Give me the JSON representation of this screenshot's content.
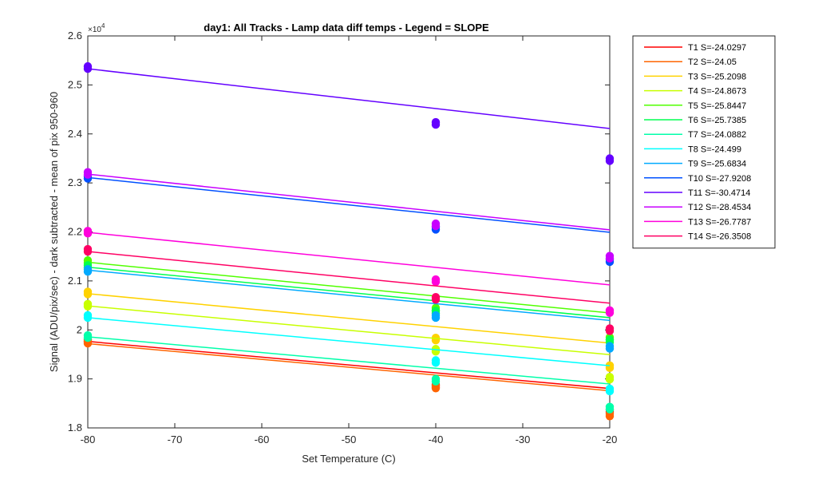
{
  "chart_data": {
    "type": "scatter",
    "title": "day1: All Tracks - Lamp data diff temps - Legend = SLOPE",
    "xlabel": "Set Temperature (C)",
    "ylabel": "Signal (ADU/pix/sec) - dark subtracted - mean of pix 950-960",
    "y_multiplier_label": "×10^4",
    "y_multiplier_base": "×10",
    "y_multiplier_exp": "4",
    "xlim": [
      -80,
      -20
    ],
    "ylim": [
      1.8,
      2.6
    ],
    "x_ticks": [
      -80,
      -70,
      -60,
      -50,
      -40,
      -30,
      -20
    ],
    "x_tick_labels": [
      "-80",
      "-70",
      "-60",
      "-50",
      "-40",
      "-30",
      "-20"
    ],
    "y_ticks": [
      1.8,
      1.9,
      2.0,
      2.1,
      2.2,
      2.3,
      2.4,
      2.5,
      2.6
    ],
    "y_tick_labels": [
      "1.8",
      "1.9",
      "2",
      "2.1",
      "2.2",
      "2.3",
      "2.4",
      "2.5",
      "2.6"
    ],
    "grid": false,
    "legend_position": "outside-right",
    "x": [
      -80,
      -40,
      -20
    ],
    "series": [
      {
        "name": "T1 S=-24.0297",
        "color": "#ff0000",
        "points": [
          1.9755,
          1.883,
          1.8325
        ],
        "fit": [
          1.9765,
          1.8804
        ]
      },
      {
        "name": "T2 S=-24.05",
        "color": "#ff6400",
        "points": [
          1.9725,
          1.881,
          1.824
        ],
        "fit": [
          1.972,
          1.8758
        ]
      },
      {
        "name": "T3 S=-25.2098",
        "color": "#ffd200",
        "points": [
          2.073,
          1.979,
          1.9225
        ],
        "fit": [
          2.074,
          1.9732
        ]
      },
      {
        "name": "T4 S=-24.8673",
        "color": "#c8ff00",
        "points": [
          2.048,
          1.956,
          1.899
        ],
        "fit": [
          2.049,
          1.9495
        ]
      },
      {
        "name": "T5 S=-25.8447",
        "color": "#50ff00",
        "points": [
          2.137,
          2.04,
          1.98
        ],
        "fit": [
          2.138,
          2.0346
        ]
      },
      {
        "name": "T6 S=-25.7385",
        "color": "#00ff50",
        "points": [
          2.127,
          2.034,
          1.975
        ],
        "fit": [
          2.128,
          2.025
        ]
      },
      {
        "name": "T7 S=-24.0882",
        "color": "#00ffaa",
        "points": [
          1.984,
          1.895,
          1.838
        ],
        "fit": [
          1.986,
          1.8896
        ]
      },
      {
        "name": "T8 S=-24.499",
        "color": "#00ffff",
        "points": [
          2.025,
          1.933,
          1.875
        ],
        "fit": [
          2.025,
          1.927
        ]
      },
      {
        "name": "T9 S=-25.6834",
        "color": "#00aaff",
        "points": [
          2.119,
          2.025,
          1.962
        ],
        "fit": [
          2.122,
          2.0193
        ]
      },
      {
        "name": "T10 S=-27.9208",
        "color": "#0050ff",
        "points": [
          2.309,
          2.205,
          2.139
        ],
        "fit": [
          2.311,
          2.1993
        ]
      },
      {
        "name": "T11 S=-30.4714",
        "color": "#6400ff",
        "points": [
          2.533,
          2.419,
          2.345
        ],
        "fit": [
          2.533,
          2.4111
        ]
      },
      {
        "name": "T12 S=-28.4534",
        "color": "#c800ff",
        "points": [
          2.317,
          2.212,
          2.146
        ],
        "fit": [
          2.318,
          2.2042
        ]
      },
      {
        "name": "T13 S=-26.7787",
        "color": "#ff00dc",
        "points": [
          2.197,
          2.098,
          2.035
        ],
        "fit": [
          2.199,
          2.0919
        ]
      },
      {
        "name": "T14 S=-26.3508",
        "color": "#ff0064",
        "points": [
          2.16,
          2.062,
          1.998
        ],
        "fit": [
          2.16,
          2.0546
        ]
      }
    ]
  }
}
